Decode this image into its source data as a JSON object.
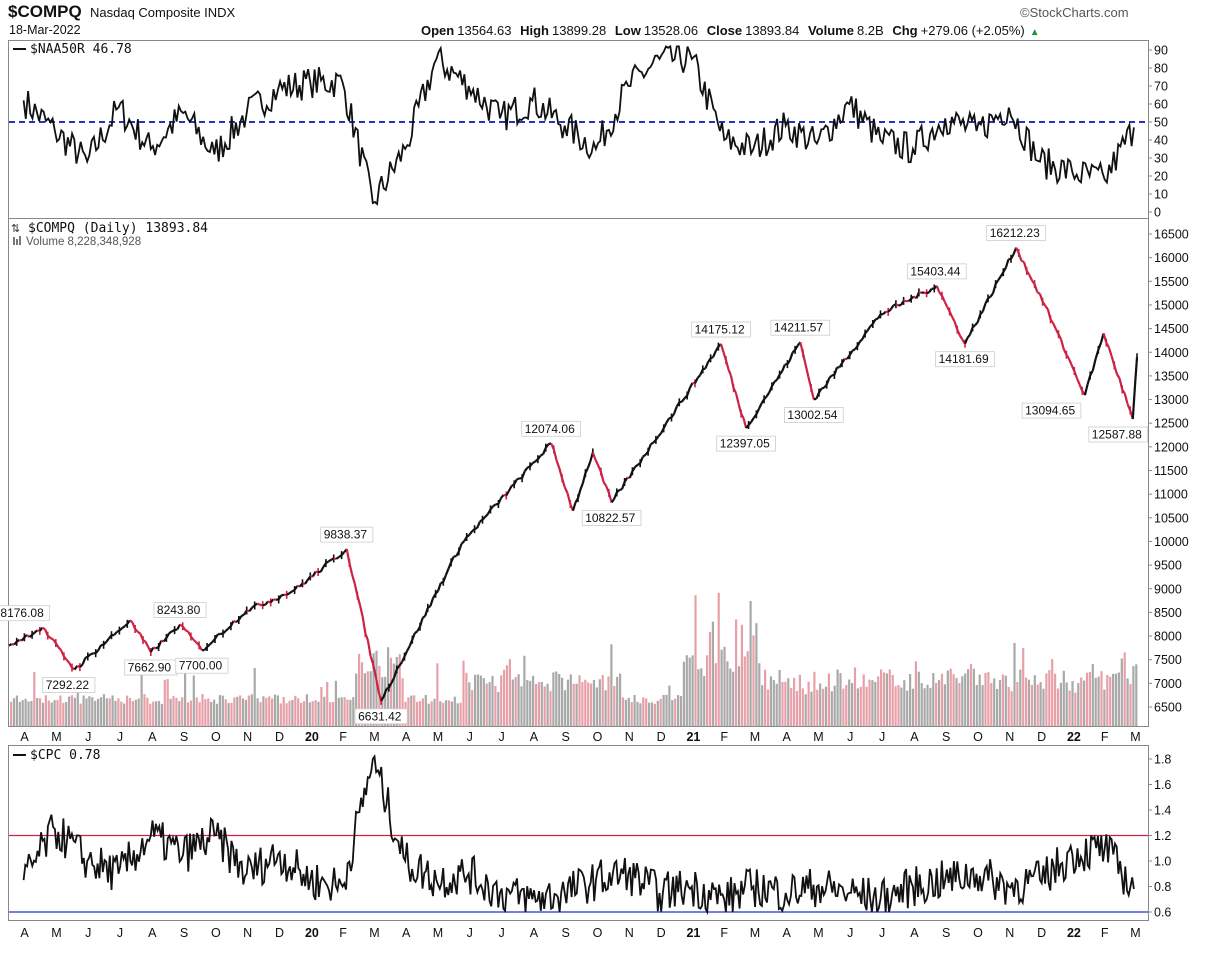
{
  "header": {
    "symbol": "$COMPQ",
    "name": "Nasdaq Composite INDX",
    "date": "18-Mar-2022",
    "source": "©StockCharts.com",
    "open_label": "Open",
    "open": "13564.63",
    "high_label": "High",
    "high": "13899.28",
    "low_label": "Low",
    "low": "13528.06",
    "close_label": "Close",
    "close": "13893.84",
    "volume_label": "Volume",
    "volume": "8.2B",
    "chg_label": "Chg",
    "chg": "+279.06 (+2.05%)"
  },
  "colors": {
    "up": "#111111",
    "down": "#cc2244",
    "vol_up": "#a9a9a9",
    "vol_down": "#e8a0a8",
    "naa_line": "#2233cc",
    "cpc_high": "#cc2244",
    "cpc_low": "#2233cc"
  },
  "months": [
    "A",
    "M",
    "J",
    "J",
    "A",
    "S",
    "O",
    "N",
    "D",
    "20",
    "F",
    "M",
    "A",
    "M",
    "J",
    "J",
    "A",
    "S",
    "O",
    "N",
    "D",
    "21",
    "F",
    "M",
    "A",
    "M",
    "J",
    "J",
    "A",
    "S",
    "O",
    "N",
    "D",
    "22",
    "F",
    "M"
  ],
  "chart_data": [
    {
      "type": "line",
      "panel": "top",
      "legend": "$NAA50R 46.78",
      "ylim": [
        0,
        90
      ],
      "yticks": [
        0,
        10,
        20,
        30,
        40,
        50,
        60,
        70,
        80,
        90
      ],
      "reference_line": 50,
      "x": [
        "2019-04",
        "2019-05",
        "2019-06",
        "2019-07",
        "2019-08",
        "2019-09",
        "2019-10",
        "2019-11",
        "2019-12",
        "2020-01",
        "2020-02",
        "2020-03",
        "2020-04",
        "2020-05",
        "2020-06",
        "2020-07",
        "2020-08",
        "2020-09",
        "2020-10",
        "2020-11",
        "2020-12",
        "2021-01",
        "2021-02",
        "2021-03",
        "2021-04",
        "2021-05",
        "2021-06",
        "2021-07",
        "2021-08",
        "2021-09",
        "2021-10",
        "2021-11",
        "2021-12",
        "2022-01",
        "2022-02",
        "2022-03"
      ],
      "values": [
        62,
        45,
        28,
        58,
        35,
        55,
        32,
        55,
        68,
        72,
        72,
        5,
        35,
        85,
        70,
        52,
        62,
        48,
        35,
        70,
        85,
        85,
        40,
        35,
        48,
        38,
        60,
        40,
        35,
        52,
        45,
        58,
        28,
        22,
        18,
        47
      ]
    },
    {
      "type": "line",
      "panel": "main",
      "legend": "$COMPQ (Daily) 13893.84",
      "volume_legend": "Volume 8,228,348,928",
      "ylim": [
        6300,
        16600
      ],
      "yticks": [
        6500,
        7000,
        7500,
        8000,
        8500,
        9000,
        9500,
        10000,
        10500,
        11000,
        11500,
        12000,
        12500,
        13000,
        13500,
        14000,
        14500,
        15000,
        15500,
        16000,
        16500
      ],
      "x": [
        "2019-04-01",
        "2019-05-03",
        "2019-06-03",
        "2019-07-26",
        "2019-08-15",
        "2019-08-30",
        "2019-09-12",
        "2019-10-03",
        "2019-11-15",
        "2019-12-31",
        "2020-02-19",
        "2020-03-23",
        "2020-06-08",
        "2020-09-02",
        "2020-09-23",
        "2020-10-12",
        "2020-10-30",
        "2021-02-12",
        "2021-03-08",
        "2021-04-29",
        "2021-05-12",
        "2021-07-15",
        "2021-09-07",
        "2021-10-04",
        "2021-11-22",
        "2021-12-20",
        "2022-01-27",
        "2022-02-14",
        "2022-03-14",
        "2022-03-18"
      ],
      "values": [
        7800,
        8176.08,
        7292.22,
        8330,
        7662.9,
        7960,
        8243.8,
        7700,
        8540,
        8972,
        9838.37,
        6631.42,
        9950,
        12074.06,
        10650,
        11880,
        10822.57,
        14175.12,
        12397.05,
        14211.57,
        13002.54,
        14800,
        15403.44,
        14181.69,
        16212.23,
        14980,
        13094.65,
        14400,
        12587.88,
        13893.84
      ],
      "annotations": [
        "8176.08",
        "7292.22",
        "7662.90",
        "8243.80",
        "7700.00",
        "9838.37",
        "6631.42",
        "12074.06",
        "10822.57",
        "14175.12",
        "12397.05",
        "14211.57",
        "13002.54",
        "15403.44",
        "14181.69",
        "16212.23",
        "13094.65",
        "12587.88"
      ],
      "grid": false
    },
    {
      "type": "line",
      "panel": "bottom",
      "legend": "$CPC 0.78",
      "ylim": [
        0.58,
        1.85
      ],
      "yticks": [
        0.6,
        0.8,
        1.0,
        1.2,
        1.4,
        1.6,
        1.8
      ],
      "reference_lines": [
        1.2,
        0.6
      ],
      "x": [
        "2019-04",
        "2019-05",
        "2019-06",
        "2019-07",
        "2019-08",
        "2019-09",
        "2019-10",
        "2019-11",
        "2019-12",
        "2020-01",
        "2020-02",
        "2020-03",
        "2020-04",
        "2020-05",
        "2020-06",
        "2020-07",
        "2020-08",
        "2020-09",
        "2020-10",
        "2020-11",
        "2020-12",
        "2021-01",
        "2021-02",
        "2021-03",
        "2021-04",
        "2021-05",
        "2021-06",
        "2021-07",
        "2021-08",
        "2021-09",
        "2021-10",
        "2021-11",
        "2021-12",
        "2022-01",
        "2022-02",
        "2022-03"
      ],
      "values": [
        0.85,
        1.25,
        1.0,
        0.9,
        1.2,
        1.05,
        1.2,
        0.9,
        1.05,
        0.85,
        0.8,
        1.8,
        1.0,
        0.85,
        0.9,
        0.75,
        0.7,
        0.75,
        0.85,
        0.9,
        0.75,
        0.8,
        0.7,
        0.8,
        0.75,
        0.8,
        0.75,
        0.7,
        0.8,
        0.85,
        0.9,
        0.8,
        0.85,
        1.05,
        1.1,
        0.78
      ]
    }
  ]
}
